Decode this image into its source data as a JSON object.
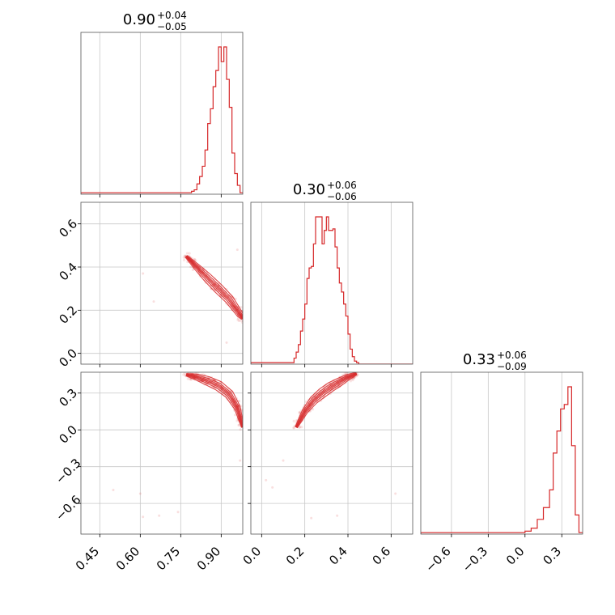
{
  "chart_data": {
    "type": "corner",
    "colors": {
      "series": "#d62728",
      "grid": "#c8c8c8",
      "frame": "#555555"
    },
    "grid": true,
    "parameters": [
      {
        "title_value": "0.90",
        "err_plus": "+0.04",
        "err_minus": "−0.05",
        "range": [
          0.38,
          0.98
        ],
        "ticks": [
          0.45,
          0.6,
          0.75,
          0.9
        ],
        "tick_labels": [
          "0.45",
          "0.60",
          "0.75",
          "0.90"
        ]
      },
      {
        "title_value": "0.30",
        "err_plus": "+0.06",
        "err_minus": "−0.06",
        "range": [
          -0.05,
          0.7
        ],
        "ticks": [
          0.0,
          0.2,
          0.4,
          0.6
        ],
        "tick_labels": [
          "0.0",
          "0.2",
          "0.4",
          "0.6"
        ]
      },
      {
        "title_value": "0.33",
        "err_plus": "+0.06",
        "err_minus": "−0.09",
        "range": [
          -0.85,
          0.47
        ],
        "ticks": [
          -0.6,
          -0.3,
          0.0,
          0.3
        ],
        "tick_labels": [
          "−0.6",
          "−0.3",
          "0.0",
          "0.3"
        ]
      }
    ],
    "histograms": [
      {
        "parameter": 0,
        "edges": [
          0.38,
          0.79,
          0.8,
          0.81,
          0.82,
          0.83,
          0.84,
          0.85,
          0.86,
          0.87,
          0.88,
          0.89,
          0.9,
          0.91,
          0.92,
          0.93,
          0.94,
          0.95,
          0.96,
          0.97,
          0.98
        ],
        "counts": [
          1,
          2,
          3,
          7,
          12,
          19,
          30,
          48,
          58,
          73,
          84,
          100,
          90,
          100,
          78,
          59,
          28,
          14,
          6,
          1
        ]
      },
      {
        "parameter": 1,
        "edges": [
          -0.05,
          0.15,
          0.16,
          0.17,
          0.18,
          0.19,
          0.2,
          0.21,
          0.22,
          0.23,
          0.24,
          0.25,
          0.26,
          0.27,
          0.28,
          0.29,
          0.3,
          0.31,
          0.32,
          0.33,
          0.34,
          0.35,
          0.36,
          0.37,
          0.38,
          0.39,
          0.4,
          0.41,
          0.42,
          0.43,
          0.44,
          0.45,
          0.7
        ],
        "counts": [
          1,
          4,
          8,
          13,
          22,
          30,
          40,
          57,
          64,
          65,
          80,
          98,
          98,
          98,
          80,
          89,
          98,
          89,
          89,
          90,
          78,
          64,
          54,
          48,
          40,
          32,
          20,
          10,
          5,
          2,
          1,
          0
        ]
      },
      {
        "parameter": 2,
        "edges": [
          -0.85,
          0.0,
          0.05,
          0.1,
          0.15,
          0.2,
          0.23,
          0.26,
          0.29,
          0.32,
          0.35,
          0.38,
          0.41,
          0.44,
          0.47
        ],
        "counts": [
          1,
          2,
          4,
          10,
          18,
          30,
          55,
          70,
          85,
          88,
          100,
          60,
          13,
          1
        ]
      }
    ],
    "pairs": [
      {
        "x_param": 0,
        "y_param": 1,
        "ridge_x": [
          0.77,
          0.81,
          0.85,
          0.89,
          0.93,
          0.97,
          0.98
        ],
        "ridge_y": [
          0.45,
          0.4,
          0.35,
          0.3,
          0.25,
          0.18,
          0.16
        ],
        "outliers": [
          [
            0.61,
            0.37
          ],
          [
            0.65,
            0.24
          ],
          [
            0.92,
            0.05
          ],
          [
            0.96,
            0.48
          ]
        ]
      },
      {
        "x_param": 0,
        "y_param": 2,
        "ridge_x": [
          0.77,
          0.81,
          0.85,
          0.89,
          0.93,
          0.96,
          0.98
        ],
        "ridge_y": [
          0.45,
          0.43,
          0.4,
          0.36,
          0.29,
          0.18,
          0.02
        ],
        "outliers": [
          [
            0.5,
            -0.49
          ],
          [
            0.6,
            -0.52
          ],
          [
            0.61,
            -0.71
          ],
          [
            0.67,
            -0.7
          ],
          [
            0.74,
            -0.67
          ],
          [
            0.97,
            -0.25
          ]
        ]
      },
      {
        "x_param": 1,
        "y_param": 2,
        "ridge_x": [
          0.16,
          0.2,
          0.24,
          0.28,
          0.32,
          0.36,
          0.4,
          0.44
        ],
        "ridge_y": [
          0.02,
          0.15,
          0.24,
          0.3,
          0.35,
          0.39,
          0.43,
          0.46
        ],
        "outliers": [
          [
            0.02,
            -0.41
          ],
          [
            0.05,
            -0.47
          ],
          [
            0.1,
            -0.25
          ],
          [
            0.23,
            -0.72
          ],
          [
            0.35,
            -0.7
          ],
          [
            0.62,
            -0.52
          ]
        ]
      }
    ]
  }
}
